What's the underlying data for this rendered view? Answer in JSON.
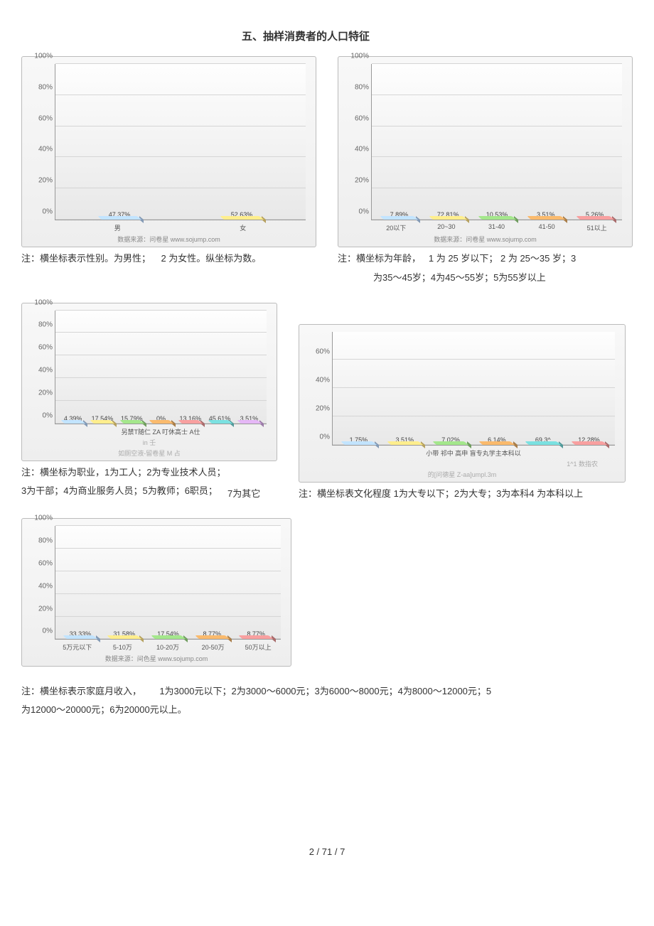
{
  "page": {
    "title": "五、抽样消费者的人口特征",
    "page_number": "2 / 71 / 7"
  },
  "chart_gender": {
    "type": "bar",
    "ylim": 100,
    "ytick_step": 20,
    "yticks": [
      "0%",
      "20%",
      "40%",
      "60%",
      "80%",
      "100%"
    ],
    "bars": [
      {
        "label": "男",
        "value": 47.37,
        "display": "47.37%",
        "color": "#a9c6e8"
      },
      {
        "label": "女",
        "value": 52.63,
        "display": "52.63%",
        "color": "#e9cf7b"
      }
    ],
    "source": "数据来源：问卷星 www.sojump.com",
    "caption_l": "注：横坐标表示性别。为男性；",
    "caption_r": "2 为女性。纵坐标为数。"
  },
  "chart_age": {
    "type": "bar",
    "ylim": 100,
    "ytick_step": 20,
    "yticks": [
      "0%",
      "20%",
      "40%",
      "60%",
      "80%",
      "100%"
    ],
    "bars": [
      {
        "label": "20以下",
        "value": 7.89,
        "display": "7.89%",
        "color": "#a9c6e8"
      },
      {
        "label": "20~30",
        "value": 72.81,
        "display": "72.81%",
        "color": "#e9cf7b"
      },
      {
        "label": "31-40",
        "value": 10.53,
        "display": "10.53%",
        "color": "#8fc97a"
      },
      {
        "label": "41-50",
        "value": 3.51,
        "display": "3.51%",
        "color": "#d9a25f"
      },
      {
        "label": "51以上",
        "value": 5.26,
        "display": "5.26%",
        "color": "#d88b8b"
      }
    ],
    "source": "数据来源：问卷星 www.sojump.com",
    "caption_l": "注：横坐标为年龄，",
    "caption_r": "1 为 25 岁以下； 2 为 25～35 岁；3",
    "caption_line2": "为35～45岁；4为45～55岁；5为55岁以上"
  },
  "chart_job": {
    "type": "bar",
    "ylim": 100,
    "ytick_step": 20,
    "yticks": [
      "0%",
      "20%",
      "40%",
      "60%",
      "80%",
      "100%"
    ],
    "bars": [
      {
        "label": "",
        "value": 4.39,
        "display": "4.39%",
        "color": "#a9c6e8"
      },
      {
        "label": "",
        "value": 17.54,
        "display": "17.54%",
        "color": "#e9cf7b"
      },
      {
        "label": "",
        "value": 15.79,
        "display": "15.79%",
        "color": "#8fc97a"
      },
      {
        "label": "",
        "value": 0,
        "display": "0%",
        "color": "#d9a25f"
      },
      {
        "label": "",
        "value": 13.16,
        "display": "13.16%",
        "color": "#d88b8b"
      },
      {
        "label": "",
        "value": 45.61,
        "display": "45.61%",
        "color": "#6bc4c4"
      },
      {
        "label": "",
        "value": 3.51,
        "display": "3.51%",
        "color": "#c79fd6"
      }
    ],
    "x_text": "另禁T随仁 ZA      叮休高士 A仕",
    "misc2": "in      壬",
    "misc3": "如厕空液-留卷星      M 占",
    "caption1": "注：横坐标为职业，1为工人；2为专业技术人员；",
    "caption2": "3为干部；4为商业服务人员；5为教师；6职员；",
    "caption2_r": "7为其它"
  },
  "chart_edu": {
    "type": "bar",
    "ylim": 80,
    "ytick_step": 20,
    "yticks": [
      "0%",
      "20%",
      "40%",
      "60%"
    ],
    "bars": [
      {
        "label": "小带",
        "value": 1.75,
        "display": "1.75%",
        "color": "#a9c6e8"
      },
      {
        "label": "祁中",
        "value": 3.51,
        "display": "3.51%",
        "color": "#e9cf7b"
      },
      {
        "label": "高申",
        "value": 7.02,
        "display": "7.02%",
        "color": "#8fc97a"
      },
      {
        "label": "盲专",
        "value": 6.14,
        "display": "6.14%",
        "color": "#d9a25f"
      },
      {
        "label": "丸学主",
        "value": 69.3,
        "display": "69.3^",
        "color": "#6bc4c4"
      },
      {
        "label": "本科以",
        "value": 12.28,
        "display": "12.28%",
        "color": "#d88b8b"
      }
    ],
    "x_text": "小带 祁中 高申 盲专丸学主本科以",
    "misc": "1^1 数指农",
    "misc2": "的[问德星 Z-aa]umpl.3m",
    "caption": "注：横坐标表文化程度 1为大专以下；2为大专；3为本科4 为本科以上"
  },
  "chart_income": {
    "type": "bar",
    "ylim": 100,
    "ytick_step": 20,
    "yticks": [
      "0%",
      "20%",
      "40%",
      "60%",
      "80%",
      "100%"
    ],
    "bars": [
      {
        "label": "5万元以下",
        "value": 33.33,
        "display": "33.33%",
        "color": "#a9c6e8"
      },
      {
        "label": "5-10万",
        "value": 31.58,
        "display": "31.58%",
        "color": "#e9cf7b"
      },
      {
        "label": "10-20万",
        "value": 17.54,
        "display": "17.54%",
        "color": "#8fc97a"
      },
      {
        "label": "20-50万",
        "value": 8.77,
        "display": "8.77%",
        "color": "#d9a25f"
      },
      {
        "label": "50万以上",
        "value": 8.77,
        "display": "8.77%",
        "color": "#d88b8b"
      }
    ],
    "source": "数据来源：间色星 www.sojump.com",
    "caption_l": "注：横坐标表示家庭月收入，",
    "caption_r": "1为3000元以下；2为3000～6000元；3为6000～8000元；4为8000～12000元；5",
    "caption_line2": "为12000～20000元；6为20000元以上。"
  }
}
